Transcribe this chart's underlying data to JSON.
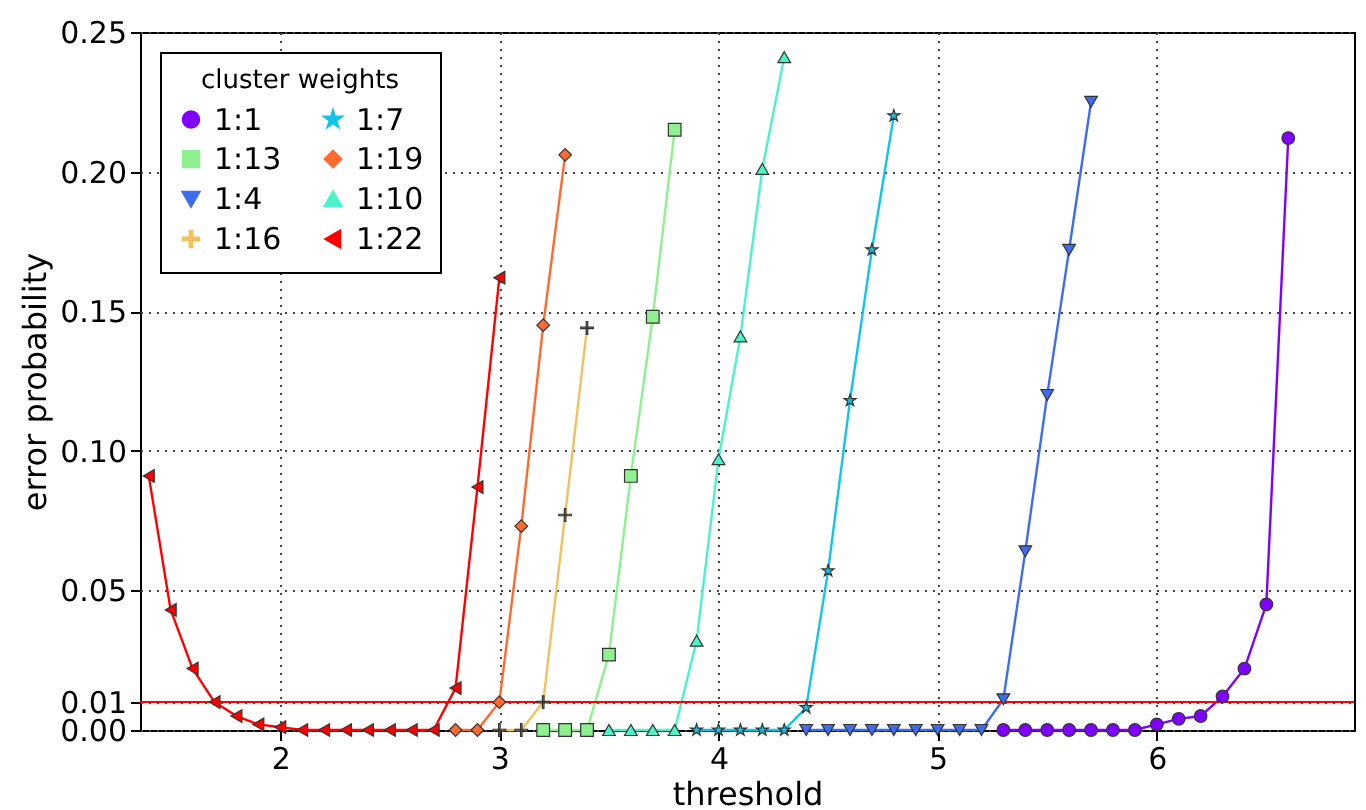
{
  "chart_data": {
    "type": "line",
    "xlabel": "threshold",
    "ylabel": "error probability",
    "legend_title": "cluster weights",
    "x": [
      1.4,
      1.5,
      1.6,
      1.7,
      1.8,
      1.9,
      2.0,
      2.1,
      2.2,
      2.3,
      2.4,
      2.5,
      2.6,
      2.7,
      2.8,
      2.9,
      3.0,
      3.1,
      3.2,
      3.3,
      3.4,
      3.5,
      3.6,
      3.7,
      3.8,
      3.9,
      4.0,
      4.1,
      4.2,
      4.3,
      4.4,
      4.5,
      4.6,
      4.7,
      4.8,
      4.9,
      5.0,
      5.1,
      5.2,
      5.3,
      5.4,
      5.5,
      5.6,
      5.7,
      5.8,
      5.9,
      6.0,
      6.1,
      6.2,
      6.3,
      6.4,
      6.5,
      6.6
    ],
    "series": [
      {
        "name": "1:1",
        "color": "#8000ff",
        "marker": "circle",
        "values": [
          null,
          null,
          null,
          null,
          null,
          null,
          null,
          null,
          null,
          null,
          null,
          null,
          null,
          null,
          null,
          null,
          null,
          null,
          null,
          null,
          null,
          null,
          null,
          null,
          null,
          null,
          null,
          null,
          null,
          null,
          null,
          null,
          null,
          null,
          null,
          null,
          null,
          null,
          null,
          0,
          0,
          0,
          0,
          0,
          0,
          0,
          0.002,
          0.004,
          0.005,
          0.012,
          0.022,
          0.045,
          0.212
        ]
      },
      {
        "name": "1:4",
        "color": "#3d6cf0",
        "marker": "triangle-down",
        "values": [
          null,
          null,
          null,
          null,
          null,
          null,
          null,
          null,
          null,
          null,
          null,
          null,
          null,
          null,
          null,
          null,
          null,
          null,
          null,
          null,
          null,
          null,
          null,
          null,
          null,
          null,
          null,
          null,
          null,
          null,
          0,
          0,
          0,
          0,
          0,
          0,
          0,
          0,
          0,
          0.011,
          0.064,
          0.12,
          0.172,
          0.225,
          null,
          null,
          null,
          null,
          null,
          null,
          null,
          null,
          null
        ]
      },
      {
        "name": "1:7",
        "color": "#12c4e8",
        "marker": "star",
        "values": [
          null,
          null,
          null,
          null,
          null,
          null,
          null,
          null,
          null,
          null,
          null,
          null,
          null,
          null,
          null,
          null,
          null,
          null,
          null,
          null,
          null,
          null,
          null,
          null,
          null,
          0,
          0,
          0,
          0,
          0,
          0.008,
          0.057,
          0.118,
          0.172,
          0.22,
          null,
          null,
          null,
          null,
          null,
          null,
          null,
          null,
          null,
          null,
          null,
          null,
          null,
          null,
          null,
          null,
          null,
          null
        ]
      },
      {
        "name": "1:10",
        "color": "#4cf2c8",
        "marker": "triangle",
        "values": [
          null,
          null,
          null,
          null,
          null,
          null,
          null,
          null,
          null,
          null,
          null,
          null,
          null,
          null,
          null,
          null,
          null,
          null,
          null,
          null,
          null,
          0,
          0,
          0,
          0,
          0.032,
          0.097,
          0.141,
          0.201,
          0.241,
          null,
          null,
          null,
          null,
          null,
          null,
          null,
          null,
          null,
          null,
          null,
          null,
          null,
          null,
          null,
          null,
          null,
          null,
          null,
          null,
          null,
          null,
          null
        ]
      },
      {
        "name": "1:13",
        "color": "#8ef08e",
        "marker": "square",
        "values": [
          null,
          null,
          null,
          null,
          null,
          null,
          null,
          null,
          null,
          null,
          null,
          null,
          null,
          null,
          null,
          null,
          null,
          null,
          0,
          0,
          0,
          0.027,
          0.091,
          0.148,
          0.215,
          null,
          null,
          null,
          null,
          null,
          null,
          null,
          null,
          null,
          null,
          null,
          null,
          null,
          null,
          null,
          null,
          null,
          null,
          null,
          null,
          null,
          null,
          null,
          null,
          null,
          null,
          null,
          null
        ]
      },
      {
        "name": "1:16",
        "color": "#f2c060",
        "marker": "cross",
        "values": [
          null,
          null,
          null,
          null,
          null,
          null,
          null,
          null,
          null,
          null,
          null,
          null,
          null,
          null,
          null,
          null,
          0,
          0,
          0.01,
          0.077,
          0.144,
          null,
          null,
          null,
          null,
          null,
          null,
          null,
          null,
          null,
          null,
          null,
          null,
          null,
          null,
          null,
          null,
          null,
          null,
          null,
          null,
          null,
          null,
          null,
          null,
          null,
          null,
          null,
          null,
          null,
          null,
          null,
          null
        ]
      },
      {
        "name": "1:19",
        "color": "#ff6a30",
        "marker": "diamond",
        "values": [
          null,
          null,
          null,
          null,
          null,
          null,
          null,
          null,
          null,
          null,
          null,
          null,
          null,
          null,
          0,
          0,
          0.01,
          0.073,
          0.145,
          0.206,
          null,
          null,
          null,
          null,
          null,
          null,
          null,
          null,
          null,
          null,
          null,
          null,
          null,
          null,
          null,
          null,
          null,
          null,
          null,
          null,
          null,
          null,
          null,
          null,
          null,
          null,
          null,
          null,
          null,
          null,
          null,
          null,
          null
        ]
      },
      {
        "name": "1:22",
        "color": "#ff0000",
        "marker": "triangle-left",
        "values": [
          0.091,
          0.043,
          0.022,
          0.01,
          0.005,
          0.002,
          0.001,
          0,
          0,
          0,
          0,
          0,
          0,
          0,
          0.015,
          0.087,
          0.162,
          null,
          null,
          null,
          null,
          null,
          null,
          null,
          null,
          null,
          null,
          null,
          null,
          null,
          null,
          null,
          null,
          null,
          null,
          null,
          null,
          null,
          null,
          null,
          null,
          null,
          null,
          null,
          null,
          null,
          null,
          null,
          null,
          null,
          null,
          null,
          null
        ]
      }
    ],
    "xlim": [
      1.36,
      6.9
    ],
    "ylim": [
      0,
      0.25
    ],
    "xticks": [
      2,
      3,
      4,
      5,
      6
    ],
    "yticks": [
      {
        "value": 0,
        "label": "0.00"
      },
      {
        "value": 0.01,
        "label": "0.01"
      },
      {
        "value": 0.05,
        "label": "0.05"
      },
      {
        "value": 0.1,
        "label": "0.10"
      },
      {
        "value": 0.15,
        "label": "0.15"
      },
      {
        "value": 0.2,
        "label": "0.20"
      },
      {
        "value": 0.25,
        "label": "0.25"
      }
    ],
    "ref_lines": [
      {
        "axis": "y",
        "value": 0.01,
        "color": "#ff0000"
      }
    ],
    "grid": true,
    "legend": "top left"
  }
}
